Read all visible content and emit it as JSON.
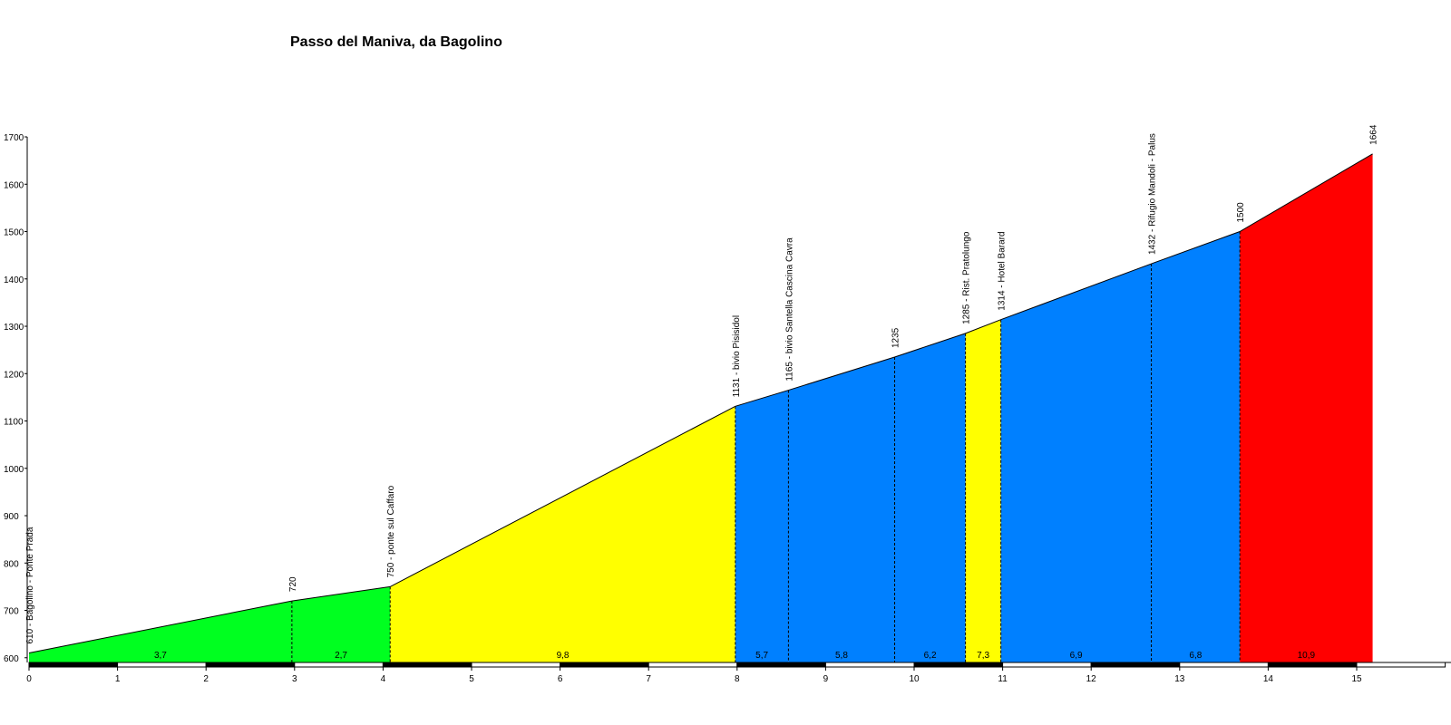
{
  "chart_data": {
    "type": "area",
    "title": "Passo del Maniva, da Bagolino",
    "xlabel": "",
    "ylabel": "",
    "xlim": [
      0,
      15.9
    ],
    "ylim": [
      590,
      1700
    ],
    "x_ticks": [
      0,
      1,
      2,
      3,
      4,
      5,
      6,
      7,
      8,
      9,
      10,
      11,
      12,
      13,
      14,
      15
    ],
    "y_ticks": [
      600,
      700,
      800,
      900,
      1000,
      1100,
      1200,
      1300,
      1400,
      1500,
      1600,
      1700
    ],
    "grid": false,
    "colors": {
      "green": "#00ff20",
      "yellow": "#ffff00",
      "blue": "#0080ff",
      "red": "#ff0000"
    },
    "profile": [
      {
        "km": 0.0,
        "elevation": 610,
        "label": "610 - Bagolino - Ponte Prada"
      },
      {
        "km": 2.97,
        "elevation": 720,
        "label": "720"
      },
      {
        "km": 4.08,
        "elevation": 750,
        "label": "750 - ponte sul Caffaro"
      },
      {
        "km": 7.98,
        "elevation": 1131,
        "label": "1131 - bivio Pisisidol"
      },
      {
        "km": 8.58,
        "elevation": 1165,
        "label": "1165 - bivio Santella Cascina Cavra"
      },
      {
        "km": 9.78,
        "elevation": 1235,
        "label": "1235"
      },
      {
        "km": 10.58,
        "elevation": 1285,
        "label": "1285 - Rist. Pratolungo"
      },
      {
        "km": 10.98,
        "elevation": 1314,
        "label": "1314 - Hotel Barard"
      },
      {
        "km": 12.68,
        "elevation": 1432,
        "label": "1432 - Rifugio Mandoli - Palus"
      },
      {
        "km": 13.68,
        "elevation": 1500,
        "label": "1500"
      },
      {
        "km": 15.18,
        "elevation": 1664,
        "label": "1664"
      }
    ],
    "segments": [
      {
        "gradient": "3,7",
        "color": "green"
      },
      {
        "gradient": "2,7",
        "color": "green"
      },
      {
        "gradient": "9,8",
        "color": "yellow"
      },
      {
        "gradient": "5,7",
        "color": "blue"
      },
      {
        "gradient": "5,8",
        "color": "blue"
      },
      {
        "gradient": "6,2",
        "color": "blue"
      },
      {
        "gradient": "7,3",
        "color": "yellow"
      },
      {
        "gradient": "6,9",
        "color": "blue"
      },
      {
        "gradient": "6,8",
        "color": "blue"
      },
      {
        "gradient": "10,9",
        "color": "red"
      }
    ]
  }
}
